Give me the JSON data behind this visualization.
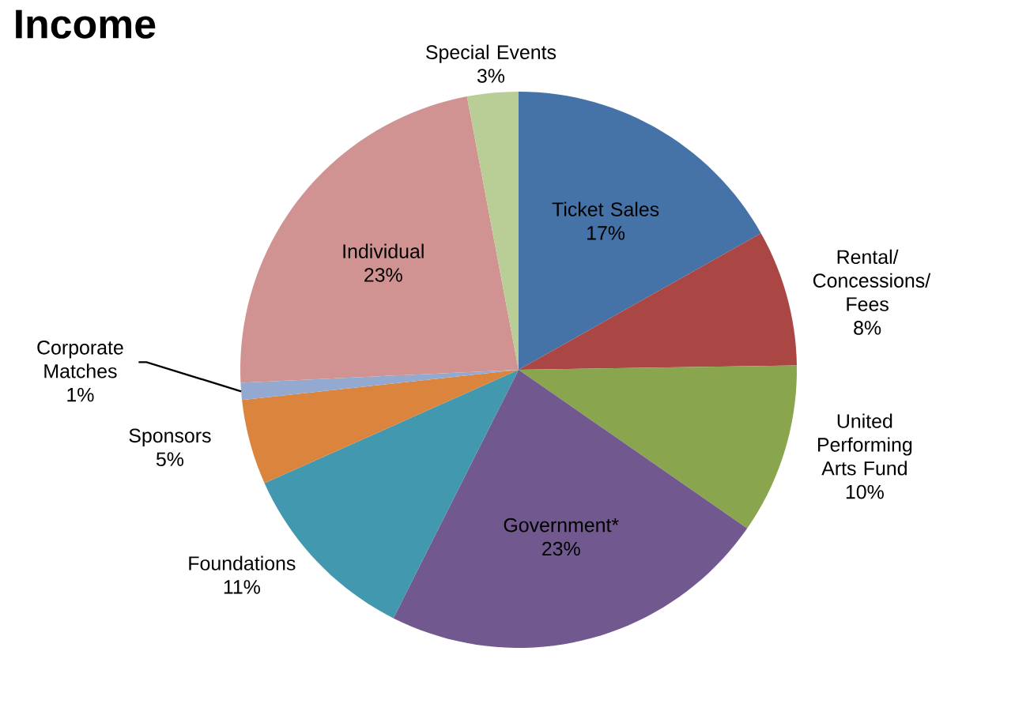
{
  "chart_data": {
    "type": "pie",
    "title": "Income",
    "categories": [
      "Ticket Sales",
      "Rental/ Concessions/ Fees",
      "United Performing Arts Fund",
      "Government*",
      "Foundations",
      "Sponsors",
      "Corporate Matches",
      "Individual",
      "Special Events"
    ],
    "values": [
      17,
      8,
      10,
      23,
      11,
      5,
      1,
      23,
      3
    ],
    "value_labels": [
      "17%",
      "8%",
      "10%",
      "23%",
      "11%",
      "5%",
      "1%",
      "23%",
      "3%"
    ],
    "colors": [
      "#4572a7",
      "#aa4643",
      "#89a54e",
      "#71588f",
      "#4198af",
      "#db843d",
      "#93a9cf",
      "#d19392",
      "#b9cd96"
    ]
  }
}
